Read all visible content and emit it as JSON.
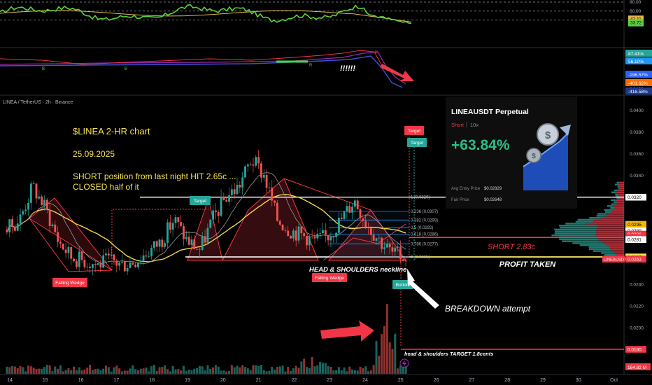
{
  "header": {
    "symbol_line": "LINEA / TetherUS · 2h · Binance"
  },
  "annotations": {
    "title": "$LINEA   2-HR chart",
    "date": "25.09.2025",
    "note_line1": "SHORT position from last night HIT 2.65c ...",
    "note_line2": "CLOSED half of it",
    "exclaim": "!!!!!!",
    "short_label": "SHORT 2.83c",
    "profit_label": "PROFIT TAKEN",
    "neckline_label": "HEAD & SHOULDERS neckline",
    "breakdown_label": "BREAKDOWN attempt",
    "hs_target_label": "head & shoulders TARGET 1.8cents",
    "tag_target1": "Target",
    "tag_target2": "Target",
    "tag_target3": "Target",
    "tag_falling1": "Falling Wedge",
    "tag_falling2": "Falling Wedge",
    "tag_bottom": "Bottom"
  },
  "pnl_card": {
    "title": "LINEAUSDT Perpetual",
    "side": "Short",
    "leverage": "10x",
    "roi": "+63.84%",
    "entry_label": "Avg Entry Price",
    "entry_value": "$0.02829",
    "fair_label": "Fair Price",
    "fair_value": "$0.02648"
  },
  "fib_levels": [
    {
      "label": "1 (0.0320)",
      "price": 0.032
    },
    {
      "label": "0.236 (0.0307)",
      "price": 0.0307
    },
    {
      "label": "0.382 (0.0299)",
      "price": 0.0299
    },
    {
      "label": "0.5 (0.0292)",
      "price": 0.0292
    },
    {
      "label": "0.618 (0.0286)",
      "price": 0.0286
    },
    {
      "label": "0.786 (0.0277)",
      "price": 0.0277
    },
    {
      "label": "0 (0.0265)",
      "price": 0.0265
    }
  ],
  "price_axis": {
    "ticks": [
      "0.0420",
      "0.0400",
      "0.0380",
      "0.0360",
      "0.0340",
      "0.0240",
      "0.0220",
      "0.0200"
    ],
    "tick_values": [
      0.042,
      0.04,
      0.038,
      0.036,
      0.034,
      0.024,
      0.022,
      0.02
    ]
  },
  "price_badges": [
    {
      "text": "0.0320",
      "price": 0.032,
      "color": "#ffffff",
      "fg": "#000000"
    },
    {
      "text": "0.0295",
      "price": 0.0295,
      "color": "#f5b800",
      "fg": "#000000"
    },
    {
      "text": "0.0289",
      "price": 0.0289,
      "color": "#ffffff",
      "fg": "#000000"
    },
    {
      "text": "0.0286",
      "price": 0.0286,
      "color": "#f23645",
      "fg": "#ffffff"
    },
    {
      "text": "0.0283",
      "price": 0.0283,
      "color": "#f23645",
      "fg": "#ffffff"
    },
    {
      "text": "0.0281",
      "price": 0.0281,
      "color": "#ffffff",
      "fg": "#000000"
    },
    {
      "text": "0.0265",
      "price": 0.0265,
      "color": "#f5e050",
      "fg": "#000000"
    },
    {
      "text": "0.0263",
      "price": 0.0263,
      "color": "#f23645",
      "fg": "#ffffff"
    },
    {
      "text": "0.0180",
      "price": 0.018,
      "color": "#f23645",
      "fg": "#ffffff"
    }
  ],
  "symbol_badge": "LINEAUSDT",
  "volume_badge": "164.82 M",
  "rsi_axis": {
    "ticks": [
      "80.00",
      "60.00",
      "40.00"
    ],
    "tick_values": [
      80,
      60,
      40
    ],
    "badges": [
      "42.11",
      "33.72"
    ],
    "badge_values": [
      42.11,
      33.72
    ]
  },
  "osc_axis": {
    "badges": [
      "87.41%",
      "56.10%",
      "-196.57%",
      "-401.62%",
      "-416.58%"
    ]
  },
  "osc_markers": [
    "B",
    "B",
    "R",
    "S"
  ],
  "time_axis": {
    "labels": [
      "14",
      "15",
      "16",
      "17",
      "18",
      "19",
      "20",
      "21",
      "22",
      "23",
      "24",
      "25",
      "26",
      "27",
      "28",
      "29",
      "30",
      "Oct"
    ]
  },
  "colors": {
    "up": "#26a69a",
    "down": "#ef5350",
    "accent_yellow": "#f5e050",
    "rsi": "#5fcf3e",
    "rsi_ma": "#e0b84a"
  },
  "chart_data": {
    "type": "candlestick",
    "title": "$LINEA   2-HR chart",
    "x_labels": [
      "14",
      "15",
      "16",
      "17",
      "18",
      "19",
      "20",
      "21",
      "22",
      "23",
      "24",
      "25",
      "26",
      "27",
      "28",
      "29",
      "30",
      "Oct"
    ],
    "ylim": [
      0.017,
      0.043
    ],
    "series": [
      {
        "name": "LINEA / TetherUS",
        "approx_close": [
          0.029,
          0.03,
          0.033,
          0.031,
          0.028,
          0.0265,
          0.0262,
          0.0258,
          0.0262,
          0.0258,
          0.0262,
          0.027,
          0.028,
          0.03,
          0.028,
          0.0272,
          0.03,
          0.032,
          0.033,
          0.0355,
          0.034,
          0.03,
          0.029,
          0.0285,
          0.028,
          0.0285,
          0.03,
          0.0318,
          0.0295,
          0.028,
          0.0268,
          0.0265
        ]
      }
    ],
    "levels": {
      "short_entry": 0.0283,
      "profit_taken": 0.0265,
      "neckline": 0.0265,
      "hs_target": 0.018,
      "resistance": 0.032
    }
  }
}
